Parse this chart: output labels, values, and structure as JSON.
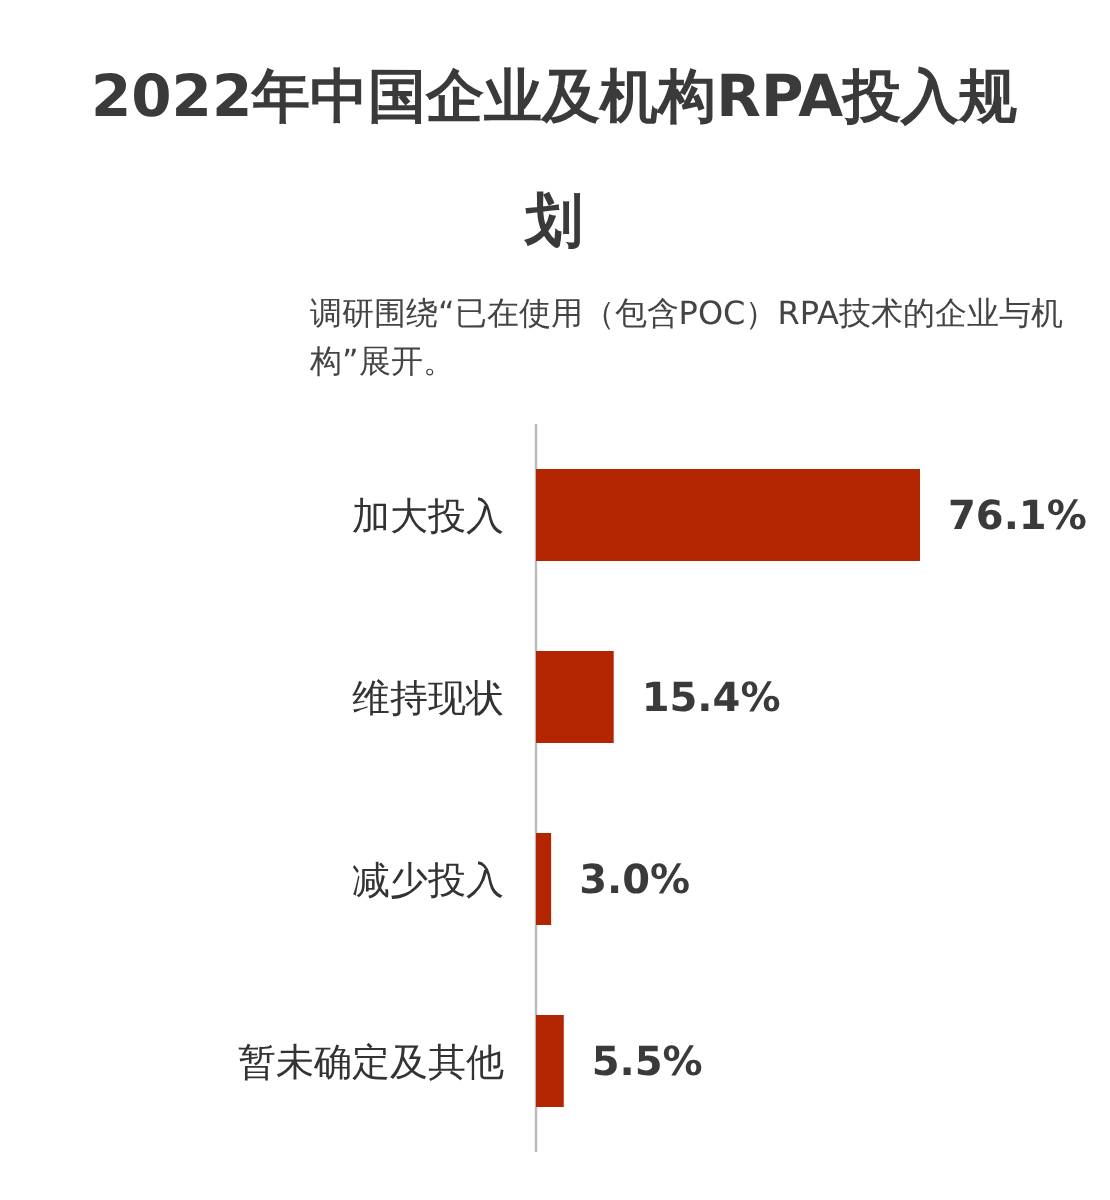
{
  "chart_data": {
    "type": "bar",
    "orientation": "horizontal",
    "title": "2022年中国企业及机构RPA投入规划",
    "subtitle": "调研围绕“已在使用（包含POC）RPA技术的企业与机构”展开。",
    "categories": [
      "加大投入",
      "维持现状",
      "减少投入",
      "暂未确定及其他"
    ],
    "values": [
      76.1,
      15.4,
      3.0,
      5.5
    ],
    "value_labels": [
      "76.1%",
      "15.4%",
      "3.0%",
      "5.5%"
    ],
    "color": "#b32400"
  }
}
